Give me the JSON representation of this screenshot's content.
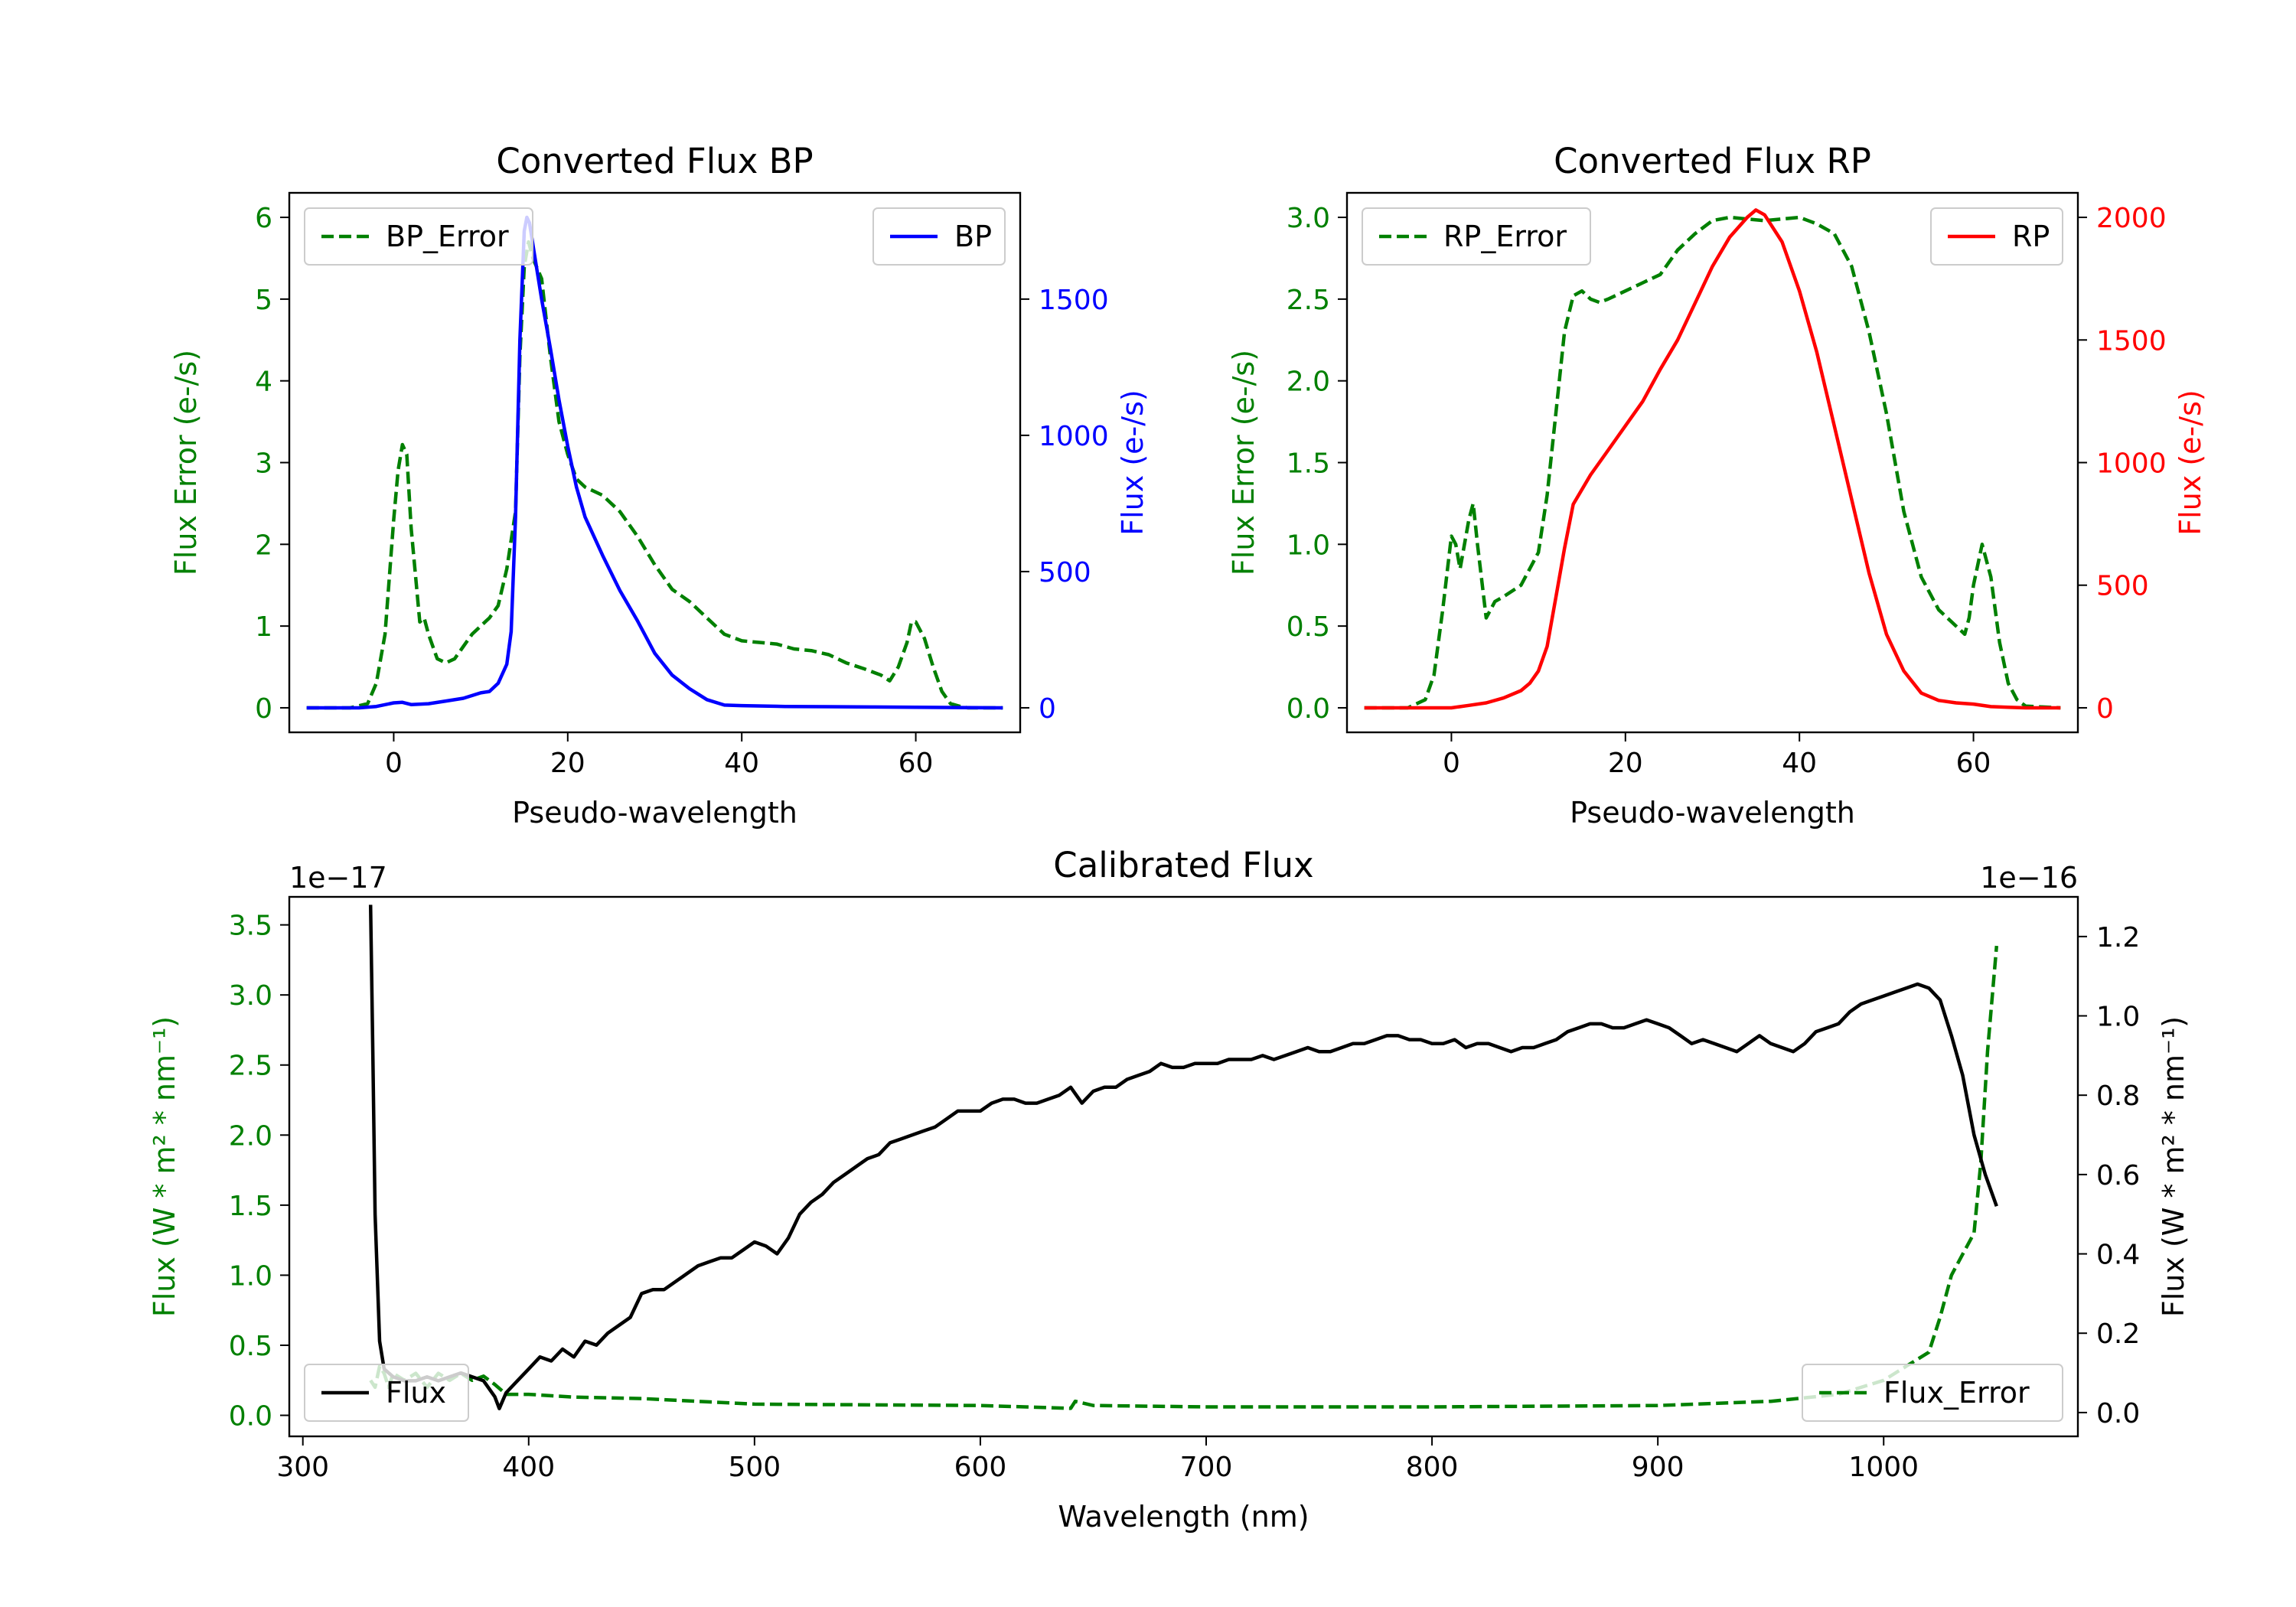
{
  "chart_data": [
    {
      "id": "bp",
      "type": "line",
      "title": "Converted Flux BP",
      "xlabel": "Pseudo-wavelength",
      "ylabel_left": "Flux Error (e-/s)",
      "ylabel_right": "Flux (e-/s)",
      "xlim": [
        -12,
        72
      ],
      "ylim_left": [
        -0.3,
        6.3
      ],
      "ylim_right": [
        -90,
        1890
      ],
      "xticks": [
        0,
        20,
        40,
        60
      ],
      "yticks_left": [
        0,
        1,
        2,
        3,
        4,
        5,
        6
      ],
      "yticks_right": [
        0,
        500,
        1000,
        1500
      ],
      "left_color": "#008000",
      "right_color": "#0000ff",
      "legend_left_pos": "upper-left",
      "legend_right_pos": "upper-right",
      "series": [
        {
          "name": "BP_Error",
          "axis": "left",
          "color": "#008000",
          "style": "dashed",
          "x": [
            -10,
            -5,
            -3,
            -2,
            -1,
            0,
            0.5,
            1,
            1.5,
            2,
            3,
            3.5,
            4,
            5,
            6,
            7,
            8,
            9,
            10,
            11,
            12,
            13,
            14,
            14.5,
            15,
            15.5,
            16,
            17,
            18,
            19,
            20,
            21,
            22,
            24,
            26,
            28,
            30,
            32,
            34,
            36,
            38,
            40,
            42,
            44,
            46,
            48,
            50,
            52,
            54,
            56,
            57,
            58,
            59,
            59.5,
            60,
            61,
            62,
            63,
            64,
            65,
            66,
            67,
            68,
            69,
            70
          ],
          "y": [
            0,
            0,
            0.05,
            0.3,
            0.9,
            2.3,
            2.9,
            3.22,
            3.1,
            2.2,
            1.05,
            1.1,
            0.9,
            0.6,
            0.55,
            0.6,
            0.75,
            0.9,
            1.0,
            1.1,
            1.25,
            1.7,
            2.4,
            4.3,
            5.4,
            5.7,
            5.5,
            5.25,
            4.3,
            3.5,
            3.1,
            2.8,
            2.7,
            2.6,
            2.4,
            2.1,
            1.75,
            1.45,
            1.3,
            1.1,
            0.9,
            0.82,
            0.8,
            0.78,
            0.72,
            0.7,
            0.65,
            0.55,
            0.48,
            0.4,
            0.33,
            0.5,
            0.8,
            1.05,
            1.05,
            0.85,
            0.5,
            0.2,
            0.05,
            0.02,
            0,
            0,
            0,
            0,
            0
          ]
        },
        {
          "name": "BP",
          "axis": "right",
          "color": "#0000ff",
          "style": "solid",
          "x": [
            -10,
            -6,
            -4,
            -2,
            0,
            1,
            2,
            4,
            6,
            8,
            10,
            11,
            12,
            13,
            13.5,
            14,
            14.5,
            15,
            15.3,
            15.6,
            16,
            16.5,
            17,
            18,
            19,
            20,
            21,
            22,
            24,
            26,
            28,
            30,
            32,
            34,
            36,
            38,
            40,
            45,
            50,
            55,
            60,
            65,
            70
          ],
          "y": [
            0,
            0,
            0,
            5,
            18,
            20,
            12,
            15,
            25,
            35,
            55,
            60,
            90,
            160,
            280,
            700,
            1350,
            1750,
            1800,
            1780,
            1700,
            1600,
            1500,
            1320,
            1130,
            960,
            810,
            700,
            560,
            430,
            320,
            200,
            120,
            70,
            30,
            10,
            8,
            5,
            4,
            3,
            2,
            1,
            0
          ]
        }
      ]
    },
    {
      "id": "rp",
      "type": "line",
      "title": "Converted Flux RP",
      "xlabel": "Pseudo-wavelength",
      "ylabel_left": "Flux Error (e-/s)",
      "ylabel_right": "Flux (e-/s)",
      "xlim": [
        -12,
        72
      ],
      "ylim_left": [
        -0.15,
        3.15
      ],
      "ylim_right": [
        -100,
        2100
      ],
      "xticks": [
        0,
        20,
        40,
        60
      ],
      "yticks_left": [
        0.0,
        0.5,
        1.0,
        1.5,
        2.0,
        2.5,
        3.0
      ],
      "yticks_right": [
        0,
        500,
        1000,
        1500,
        2000
      ],
      "left_color": "#008000",
      "right_color": "#ff0000",
      "legend_left_pos": "upper-left",
      "legend_right_pos": "upper-right",
      "series": [
        {
          "name": "RP_Error",
          "axis": "left",
          "color": "#008000",
          "style": "dashed",
          "x": [
            -10,
            -5,
            -3,
            -2,
            -1,
            0,
            0.5,
            1,
            1.5,
            2,
            2.5,
            3,
            4,
            5,
            6,
            8,
            10,
            11,
            12,
            13,
            14,
            15,
            16,
            17,
            18,
            20,
            22,
            24,
            26,
            28,
            30,
            32,
            34,
            36,
            38,
            40,
            41,
            42,
            44,
            46,
            48,
            50,
            52,
            54,
            56,
            57,
            58,
            59,
            59.5,
            60,
            61,
            62,
            63,
            64,
            65,
            66,
            70
          ],
          "y": [
            0,
            0,
            0.05,
            0.2,
            0.6,
            1.05,
            1.0,
            0.85,
            1.0,
            1.15,
            1.25,
            1.0,
            0.55,
            0.65,
            0.68,
            0.75,
            0.95,
            1.3,
            1.8,
            2.3,
            2.52,
            2.55,
            2.5,
            2.48,
            2.5,
            2.55,
            2.6,
            2.65,
            2.8,
            2.9,
            2.98,
            3.0,
            2.99,
            2.98,
            2.99,
            3.0,
            2.98,
            2.96,
            2.9,
            2.7,
            2.3,
            1.8,
            1.2,
            0.8,
            0.6,
            0.55,
            0.5,
            0.45,
            0.55,
            0.75,
            1.0,
            0.8,
            0.4,
            0.15,
            0.05,
            0.01,
            0
          ]
        },
        {
          "name": "RP",
          "axis": "right",
          "color": "#ff0000",
          "style": "solid",
          "x": [
            -10,
            -5,
            -2,
            0,
            2,
            4,
            6,
            8,
            9,
            10,
            11,
            12,
            13,
            14,
            16,
            18,
            20,
            22,
            24,
            26,
            28,
            30,
            32,
            34,
            35,
            36,
            38,
            40,
            42,
            44,
            46,
            48,
            50,
            52,
            54,
            56,
            58,
            60,
            62,
            64,
            66,
            70
          ],
          "y": [
            0,
            0,
            0,
            0,
            10,
            20,
            40,
            70,
            100,
            150,
            250,
            450,
            650,
            830,
            950,
            1050,
            1150,
            1250,
            1380,
            1500,
            1650,
            1800,
            1920,
            2000,
            2030,
            2010,
            1900,
            1700,
            1450,
            1150,
            850,
            550,
            300,
            150,
            60,
            30,
            20,
            15,
            5,
            2,
            0,
            0
          ]
        }
      ]
    },
    {
      "id": "cal",
      "type": "line",
      "title": "Calibrated Flux",
      "xlabel": "Wavelength (nm)",
      "ylabel_left": "Flux (W * m² * nm⁻¹)",
      "ylabel_right": "Flux (W * m² * nm⁻¹)",
      "left_offset_text": "1e−17",
      "right_offset_text": "1e−16",
      "xlim": [
        294,
        1086
      ],
      "ylim_left": [
        -0.15,
        3.7
      ],
      "ylim_right": [
        -0.06,
        1.3
      ],
      "xticks": [
        300,
        400,
        500,
        600,
        700,
        800,
        900,
        1000
      ],
      "yticks_left": [
        0.0,
        0.5,
        1.0,
        1.5,
        2.0,
        2.5,
        3.0,
        3.5
      ],
      "yticks_right": [
        0.0,
        0.2,
        0.4,
        0.6,
        0.8,
        1.0,
        1.2
      ],
      "left_color": "#008000",
      "right_color": "#000000",
      "legend_left_pos": "lower-right",
      "legend_right_pos": "lower-left",
      "series": [
        {
          "name": "Flux_Error",
          "axis": "left",
          "color": "#008000",
          "style": "dashed",
          "x": [
            330,
            332,
            334,
            336,
            338,
            340,
            345,
            350,
            355,
            360,
            365,
            370,
            375,
            380,
            385,
            390,
            400,
            420,
            450,
            500,
            600,
            640,
            642,
            650,
            700,
            800,
            900,
            950,
            980,
            1000,
            1010,
            1020,
            1025,
            1030,
            1035,
            1040,
            1043,
            1046,
            1050
          ],
          "y": [
            0.25,
            0.2,
            0.35,
            0.3,
            0.2,
            0.3,
            0.25,
            0.3,
            0.2,
            0.3,
            0.25,
            0.3,
            0.25,
            0.28,
            0.22,
            0.15,
            0.15,
            0.13,
            0.12,
            0.08,
            0.07,
            0.05,
            0.1,
            0.07,
            0.06,
            0.06,
            0.07,
            0.1,
            0.15,
            0.25,
            0.35,
            0.45,
            0.7,
            1.0,
            1.15,
            1.3,
            1.8,
            2.6,
            3.35
          ]
        },
        {
          "name": "Flux",
          "axis": "right",
          "color": "#000000",
          "style": "solid",
          "x": [
            330,
            331,
            332,
            334,
            336,
            340,
            345,
            350,
            355,
            360,
            365,
            370,
            375,
            380,
            385,
            387,
            390,
            395,
            400,
            405,
            410,
            415,
            420,
            425,
            430,
            435,
            440,
            445,
            450,
            455,
            460,
            465,
            470,
            475,
            480,
            485,
            490,
            495,
            500,
            505,
            510,
            515,
            520,
            525,
            530,
            535,
            540,
            545,
            550,
            555,
            560,
            565,
            570,
            575,
            580,
            585,
            590,
            595,
            600,
            605,
            610,
            615,
            620,
            625,
            630,
            635,
            640,
            645,
            650,
            655,
            660,
            665,
            670,
            675,
            680,
            685,
            690,
            695,
            700,
            705,
            710,
            715,
            720,
            725,
            730,
            735,
            740,
            745,
            750,
            755,
            760,
            765,
            770,
            775,
            780,
            785,
            790,
            795,
            800,
            805,
            810,
            815,
            820,
            825,
            830,
            835,
            840,
            845,
            850,
            855,
            860,
            865,
            870,
            875,
            880,
            885,
            890,
            895,
            900,
            905,
            910,
            915,
            920,
            925,
            930,
            935,
            940,
            945,
            950,
            955,
            960,
            965,
            970,
            975,
            980,
            985,
            990,
            995,
            1000,
            1005,
            1010,
            1015,
            1020,
            1025,
            1030,
            1035,
            1040,
            1045,
            1050
          ],
          "y": [
            1.28,
            0.9,
            0.5,
            0.18,
            0.11,
            0.09,
            0.08,
            0.08,
            0.09,
            0.08,
            0.09,
            0.1,
            0.09,
            0.08,
            0.04,
            0.01,
            0.05,
            0.08,
            0.11,
            0.14,
            0.13,
            0.16,
            0.14,
            0.18,
            0.17,
            0.2,
            0.22,
            0.24,
            0.3,
            0.31,
            0.31,
            0.33,
            0.35,
            0.37,
            0.38,
            0.39,
            0.39,
            0.41,
            0.43,
            0.42,
            0.4,
            0.44,
            0.5,
            0.53,
            0.55,
            0.58,
            0.6,
            0.62,
            0.64,
            0.65,
            0.68,
            0.69,
            0.7,
            0.71,
            0.72,
            0.74,
            0.76,
            0.76,
            0.76,
            0.78,
            0.79,
            0.79,
            0.78,
            0.78,
            0.79,
            0.8,
            0.82,
            0.78,
            0.81,
            0.82,
            0.82,
            0.84,
            0.85,
            0.86,
            0.88,
            0.87,
            0.87,
            0.88,
            0.88,
            0.88,
            0.89,
            0.89,
            0.89,
            0.9,
            0.89,
            0.9,
            0.91,
            0.92,
            0.91,
            0.91,
            0.92,
            0.93,
            0.93,
            0.94,
            0.95,
            0.95,
            0.94,
            0.94,
            0.93,
            0.93,
            0.94,
            0.92,
            0.93,
            0.93,
            0.92,
            0.91,
            0.92,
            0.92,
            0.93,
            0.94,
            0.96,
            0.97,
            0.98,
            0.98,
            0.97,
            0.97,
            0.98,
            0.99,
            0.98,
            0.97,
            0.95,
            0.93,
            0.94,
            0.93,
            0.92,
            0.91,
            0.93,
            0.95,
            0.93,
            0.92,
            0.91,
            0.93,
            0.96,
            0.97,
            0.98,
            1.01,
            1.03,
            1.04,
            1.05,
            1.06,
            1.07,
            1.08,
            1.07,
            1.04,
            0.95,
            0.85,
            0.7,
            0.6,
            0.52
          ]
        }
      ]
    }
  ]
}
